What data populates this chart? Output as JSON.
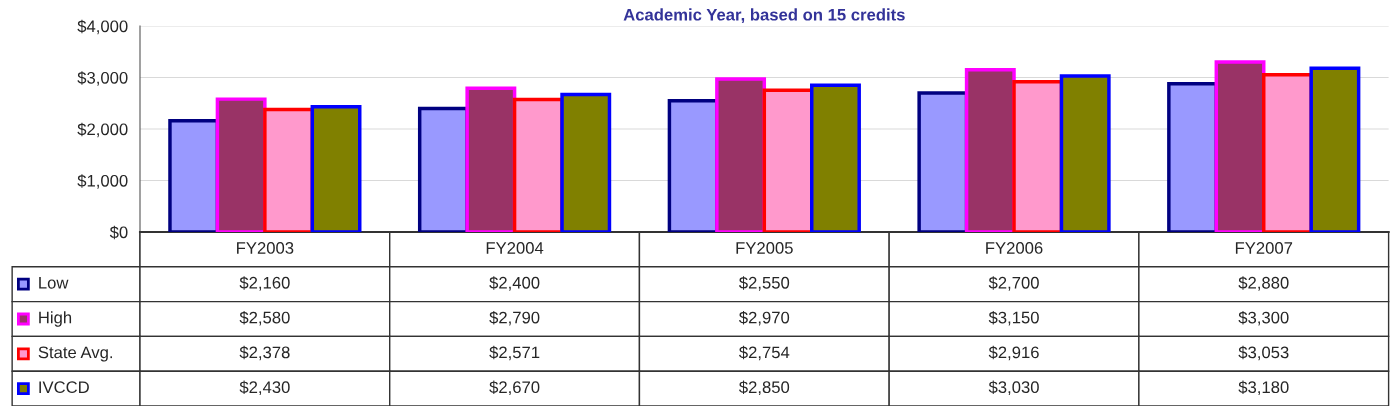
{
  "chart_data": {
    "type": "bar",
    "title": "Academic Year, based on 15 credits",
    "categories": [
      "FY2003",
      "FY2004",
      "FY2005",
      "FY2006",
      "FY2007"
    ],
    "series": [
      {
        "name": "Low",
        "color": "#9999ff",
        "values": [
          2160,
          2400,
          2550,
          2700,
          2880
        ],
        "value_labels": [
          "$2,160",
          "$2,400",
          "$2,550",
          "$2,700",
          "$2,880"
        ]
      },
      {
        "name": "High",
        "color": "#993366",
        "values": [
          2580,
          2790,
          2970,
          3150,
          3300
        ],
        "value_labels": [
          "$2,580",
          "$2,790",
          "$2,970",
          "$3,150",
          "$3,300"
        ]
      },
      {
        "name": "State Avg.",
        "color": "#ff99cc",
        "values": [
          2378,
          2571,
          2754,
          2916,
          3053
        ],
        "value_labels": [
          "$2,378",
          "$2,571",
          "$2,754",
          "$2,916",
          "$3,053"
        ]
      },
      {
        "name": "IVCCD",
        "color": "#808000",
        "values": [
          2430,
          2670,
          2850,
          3030,
          3180
        ],
        "value_labels": [
          "$2,430",
          "$2,670",
          "$2,850",
          "$3,030",
          "$3,180"
        ]
      }
    ],
    "ylim": [
      0,
      4000
    ],
    "yticks": [
      {
        "value": 0,
        "label": "$0"
      },
      {
        "value": 1000,
        "label": "$1,000"
      },
      {
        "value": 2000,
        "label": "$2,000"
      },
      {
        "value": 3000,
        "label": "$3,000"
      },
      {
        "value": 4000,
        "label": "$4,000"
      }
    ],
    "grid": "y",
    "legend": "bottom left"
  }
}
